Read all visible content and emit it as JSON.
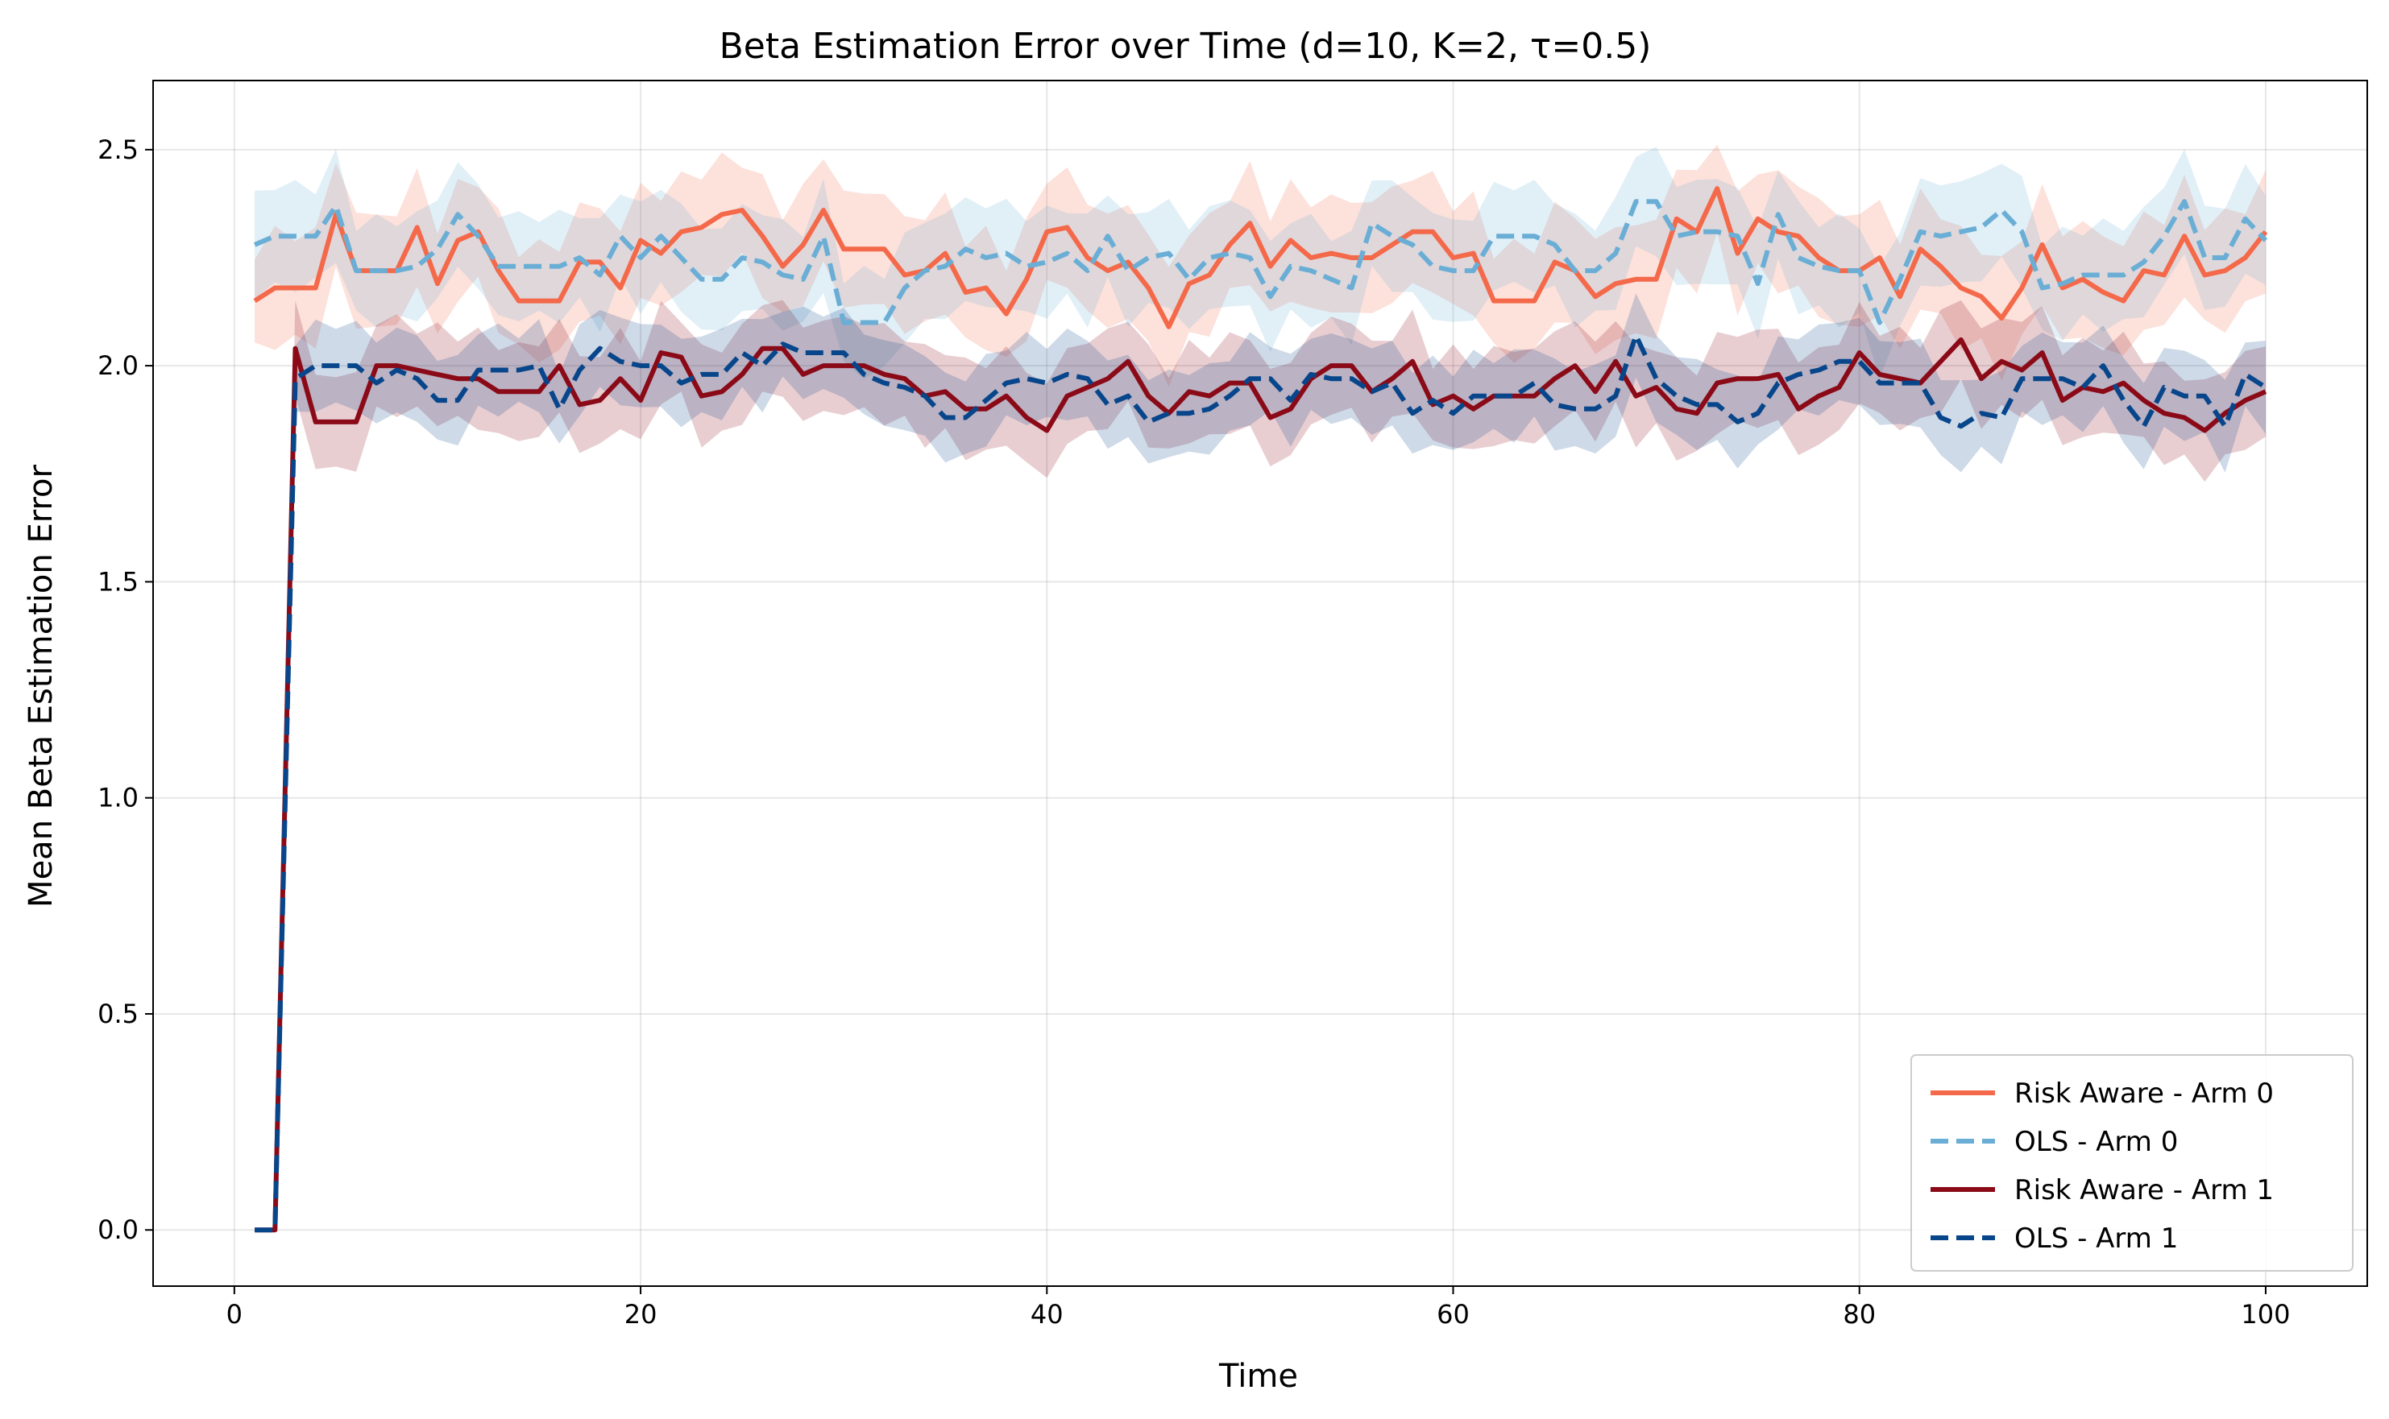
{
  "chart_data": {
    "type": "line",
    "title": "Beta Estimation Error over Time (d=10, K=2, τ=0.5)",
    "xlabel": "Time",
    "ylabel": "Mean Beta Estimation Error",
    "xlim": [
      -4,
      105
    ],
    "ylim": [
      -0.13,
      2.66
    ],
    "xticks": [
      0,
      20,
      40,
      60,
      80,
      100
    ],
    "yticks": [
      0.0,
      0.5,
      1.0,
      1.5,
      2.0,
      2.5
    ],
    "x_tick_labels": [
      "0",
      "20",
      "40",
      "60",
      "80",
      "100"
    ],
    "y_tick_labels": [
      "0.0",
      "0.5",
      "1.0",
      "1.5",
      "2.0",
      "2.5"
    ],
    "grid": true,
    "legend_position": "bottom-right",
    "x": [
      1,
      2,
      3,
      4,
      5,
      6,
      7,
      8,
      9,
      10,
      11,
      12,
      13,
      14,
      15,
      16,
      17,
      18,
      19,
      20,
      21,
      22,
      23,
      24,
      25,
      26,
      27,
      28,
      29,
      30,
      31,
      32,
      33,
      34,
      35,
      36,
      37,
      38,
      39,
      40,
      41,
      42,
      43,
      44,
      45,
      46,
      47,
      48,
      49,
      50,
      51,
      52,
      53,
      54,
      55,
      56,
      57,
      58,
      59,
      60,
      61,
      62,
      63,
      64,
      65,
      66,
      67,
      68,
      69,
      70,
      71,
      72,
      73,
      74,
      75,
      76,
      77,
      78,
      79,
      80,
      81,
      82,
      83,
      84,
      85,
      86,
      87,
      88,
      89,
      90,
      91,
      92,
      93,
      94,
      95,
      96,
      97,
      98,
      99,
      100
    ],
    "series": [
      {
        "name": "Risk Aware - Arm 0",
        "color": "#f4694a",
        "dash": "solid",
        "band_width": 0.12,
        "values": [
          2.15,
          2.18,
          2.18,
          2.18,
          2.35,
          2.22,
          2.22,
          2.22,
          2.32,
          2.19,
          2.29,
          2.31,
          2.22,
          2.15,
          2.15,
          2.15,
          2.24,
          2.24,
          2.18,
          2.29,
          2.26,
          2.31,
          2.32,
          2.35,
          2.36,
          2.3,
          2.23,
          2.28,
          2.36,
          2.27,
          2.27,
          2.27,
          2.21,
          2.22,
          2.26,
          2.17,
          2.18,
          2.12,
          2.2,
          2.31,
          2.32,
          2.25,
          2.22,
          2.24,
          2.18,
          2.09,
          2.19,
          2.21,
          2.28,
          2.33,
          2.23,
          2.29,
          2.25,
          2.26,
          2.25,
          2.25,
          2.28,
          2.31,
          2.31,
          2.25,
          2.26,
          2.15,
          2.15,
          2.15,
          2.24,
          2.22,
          2.16,
          2.19,
          2.2,
          2.2,
          2.34,
          2.31,
          2.41,
          2.26,
          2.34,
          2.31,
          2.3,
          2.25,
          2.22,
          2.22,
          2.25,
          2.16,
          2.27,
          2.23,
          2.18,
          2.16,
          2.11,
          2.18,
          2.28,
          2.18,
          2.2,
          2.17,
          2.15,
          2.22,
          2.21,
          2.3,
          2.21,
          2.22,
          2.25,
          2.31
        ]
      },
      {
        "name": "OLS - Arm 0",
        "color": "#6aaed6",
        "dash": "dashed",
        "band_width": 0.11,
        "values": [
          2.28,
          2.3,
          2.3,
          2.3,
          2.37,
          2.22,
          2.22,
          2.22,
          2.23,
          2.27,
          2.35,
          2.3,
          2.23,
          2.23,
          2.23,
          2.23,
          2.25,
          2.21,
          2.3,
          2.25,
          2.3,
          2.25,
          2.2,
          2.2,
          2.25,
          2.24,
          2.21,
          2.2,
          2.3,
          2.1,
          2.1,
          2.1,
          2.18,
          2.22,
          2.23,
          2.27,
          2.25,
          2.26,
          2.23,
          2.24,
          2.26,
          2.22,
          2.3,
          2.22,
          2.25,
          2.26,
          2.2,
          2.25,
          2.26,
          2.25,
          2.16,
          2.23,
          2.22,
          2.2,
          2.18,
          2.33,
          2.3,
          2.28,
          2.23,
          2.22,
          2.22,
          2.3,
          2.3,
          2.3,
          2.28,
          2.22,
          2.22,
          2.26,
          2.38,
          2.38,
          2.3,
          2.31,
          2.31,
          2.3,
          2.19,
          2.35,
          2.25,
          2.23,
          2.22,
          2.22,
          2.1,
          2.2,
          2.31,
          2.3,
          2.31,
          2.32,
          2.36,
          2.31,
          2.18,
          2.19,
          2.21,
          2.21,
          2.21,
          2.24,
          2.3,
          2.38,
          2.25,
          2.25,
          2.34,
          2.29
        ]
      },
      {
        "name": "Risk Aware - Arm 1",
        "color": "#8b0a17",
        "dash": "solid",
        "band_width": 0.1,
        "values": [
          0.0,
          0.0,
          2.04,
          1.87,
          1.87,
          1.87,
          2.0,
          2.0,
          1.99,
          1.98,
          1.97,
          1.97,
          1.94,
          1.94,
          1.94,
          2.0,
          1.91,
          1.92,
          1.97,
          1.92,
          2.03,
          2.02,
          1.93,
          1.94,
          1.98,
          2.04,
          2.04,
          1.98,
          2.0,
          2.0,
          2.0,
          1.98,
          1.97,
          1.93,
          1.94,
          1.9,
          1.9,
          1.93,
          1.88,
          1.85,
          1.93,
          1.95,
          1.97,
          2.01,
          1.93,
          1.89,
          1.94,
          1.93,
          1.96,
          1.96,
          1.88,
          1.9,
          1.97,
          2.0,
          2.0,
          1.94,
          1.97,
          2.01,
          1.91,
          1.93,
          1.9,
          1.93,
          1.93,
          1.93,
          1.97,
          2.0,
          1.94,
          2.01,
          1.93,
          1.95,
          1.9,
          1.89,
          1.96,
          1.97,
          1.97,
          1.98,
          1.9,
          1.93,
          1.95,
          2.03,
          1.98,
          1.97,
          1.96,
          2.01,
          2.06,
          1.97,
          2.01,
          1.99,
          2.03,
          1.92,
          1.95,
          1.94,
          1.96,
          1.92,
          1.89,
          1.88,
          1.85,
          1.89,
          1.92,
          1.94
        ]
      },
      {
        "name": "OLS - Arm 1",
        "color": "#08468b",
        "dash": "dashed",
        "band_width": 0.09,
        "values": [
          0.0,
          0.0,
          1.97,
          2.0,
          2.0,
          2.0,
          1.96,
          1.99,
          1.97,
          1.92,
          1.92,
          1.99,
          1.99,
          1.99,
          2.0,
          1.9,
          1.99,
          2.04,
          2.01,
          2.0,
          2.0,
          1.96,
          1.98,
          1.98,
          2.03,
          2.0,
          2.05,
          2.03,
          2.03,
          2.03,
          1.98,
          1.96,
          1.95,
          1.93,
          1.88,
          1.88,
          1.92,
          1.96,
          1.97,
          1.96,
          1.98,
          1.97,
          1.91,
          1.93,
          1.87,
          1.89,
          1.89,
          1.9,
          1.93,
          1.97,
          1.97,
          1.92,
          1.98,
          1.97,
          1.97,
          1.94,
          1.96,
          1.89,
          1.92,
          1.89,
          1.93,
          1.93,
          1.93,
          1.96,
          1.91,
          1.9,
          1.9,
          1.93,
          2.07,
          1.97,
          1.93,
          1.91,
          1.91,
          1.87,
          1.89,
          1.96,
          1.98,
          1.99,
          2.01,
          2.01,
          1.96,
          1.96,
          1.96,
          1.88,
          1.86,
          1.89,
          1.88,
          1.97,
          1.97,
          1.97,
          1.95,
          2.0,
          1.92,
          1.86,
          1.95,
          1.93,
          1.93,
          1.86,
          1.98,
          1.95
        ]
      }
    ]
  }
}
